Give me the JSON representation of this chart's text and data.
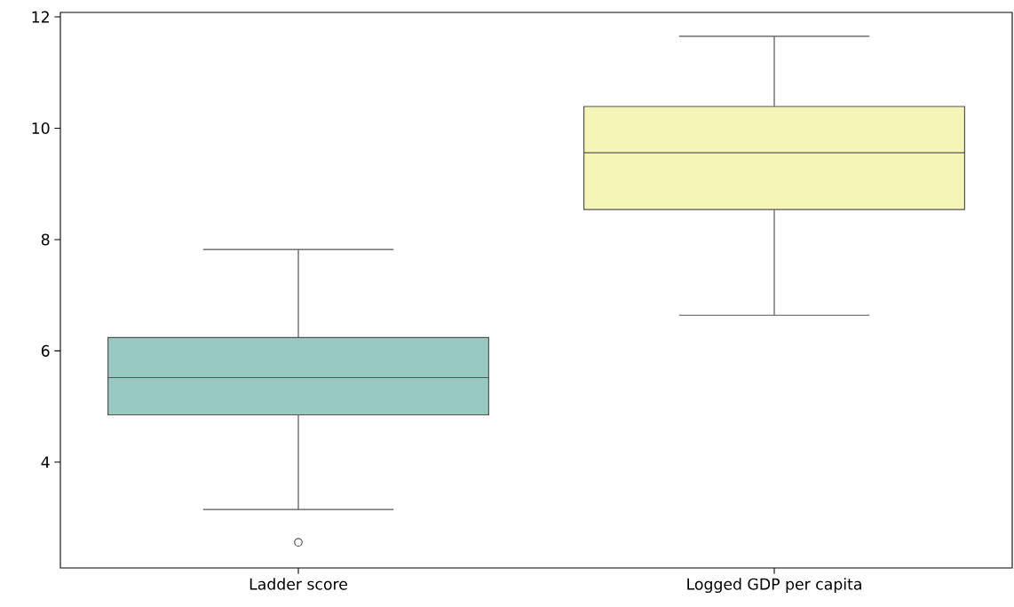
{
  "chart_data": {
    "type": "box",
    "categories": [
      "Ladder score",
      "Logged GDP per capita"
    ],
    "boxes": [
      {
        "low": 3.15,
        "q1": 4.85,
        "median": 5.52,
        "q3": 6.24,
        "high": 7.82,
        "outliers": [
          2.56
        ]
      },
      {
        "low": 6.64,
        "q1": 8.54,
        "median": 9.56,
        "q3": 10.39,
        "high": 11.65
      }
    ],
    "colors": [
      "#98c9c1",
      "#f5f5b8"
    ],
    "ylim": [
      2.1,
      12.08
    ],
    "yticks": [
      4,
      6,
      8,
      10,
      12
    ]
  }
}
